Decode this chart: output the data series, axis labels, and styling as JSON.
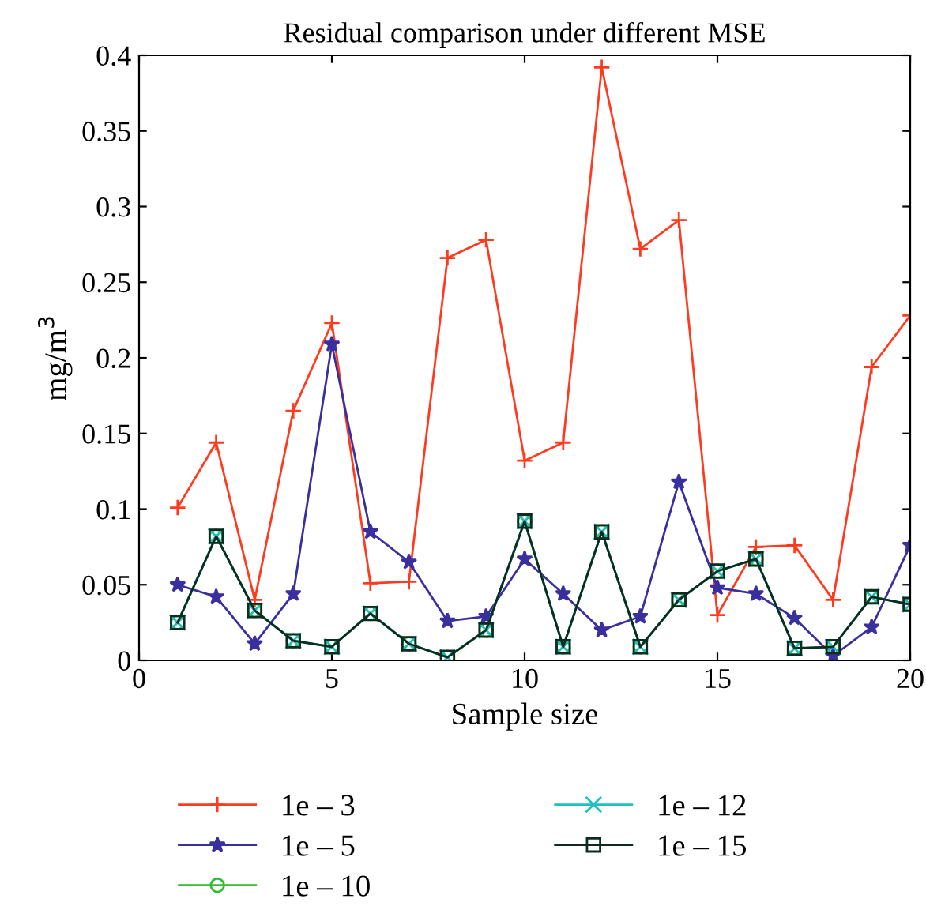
{
  "chart_data": {
    "type": "line",
    "title": "Residual comparison under different MSE",
    "xlabel": "Sample size",
    "ylabel": "mg/m$^{3}$",
    "x": [
      1,
      2,
      3,
      4,
      5,
      6,
      7,
      8,
      9,
      10,
      11,
      12,
      13,
      14,
      15,
      16,
      17,
      18,
      19,
      20
    ],
    "xlim": [
      0,
      20
    ],
    "xticks": [
      0,
      5,
      10,
      15,
      20
    ],
    "ylim": [
      0,
      0.4
    ],
    "yticks": [
      0,
      0.05,
      0.1,
      0.15,
      0.2,
      0.25,
      0.3,
      0.35,
      0.4
    ],
    "grid": false,
    "legend": "bottom",
    "line_style": "solid",
    "series": [
      {
        "name": "1e – 3",
        "color": "#ff3b1f",
        "marker": "cross",
        "values": [
          0.101,
          0.144,
          0.04,
          0.165,
          0.223,
          0.051,
          0.052,
          0.266,
          0.278,
          0.132,
          0.144,
          0.392,
          0.272,
          0.291,
          0.03,
          0.075,
          0.076,
          0.04,
          0.194,
          0.228
        ]
      },
      {
        "name": "1e – 5",
        "color": "#3a2f9e",
        "marker": "star",
        "values": [
          0.05,
          0.042,
          0.011,
          0.044,
          0.209,
          0.085,
          0.065,
          0.026,
          0.029,
          0.067,
          0.044,
          0.02,
          0.029,
          0.118,
          0.048,
          0.044,
          0.028,
          0.003,
          0.022,
          0.076
        ]
      },
      {
        "name": "1e – 10",
        "color": "#33bb33",
        "marker": "circle",
        "values": [
          0.025,
          0.082,
          0.033,
          0.013,
          0.009,
          0.031,
          0.011,
          0.002,
          0.02,
          0.092,
          0.009,
          0.085,
          0.009,
          0.04,
          0.059,
          0.067,
          0.008,
          0.009,
          0.042,
          0.037
        ]
      },
      {
        "name": "1e – 12",
        "color": "#1fbfbf",
        "marker": "x",
        "values": [
          0.025,
          0.082,
          0.033,
          0.013,
          0.009,
          0.031,
          0.011,
          0.002,
          0.02,
          0.092,
          0.009,
          0.085,
          0.009,
          0.04,
          0.059,
          0.067,
          0.008,
          0.009,
          0.042,
          0.037
        ]
      },
      {
        "name": "1e – 15",
        "color": "#0f2a1f",
        "marker": "square",
        "values": [
          0.025,
          0.082,
          0.033,
          0.013,
          0.009,
          0.031,
          0.011,
          0.002,
          0.02,
          0.092,
          0.009,
          0.085,
          0.009,
          0.04,
          0.059,
          0.067,
          0.008,
          0.009,
          0.042,
          0.037
        ]
      }
    ]
  }
}
